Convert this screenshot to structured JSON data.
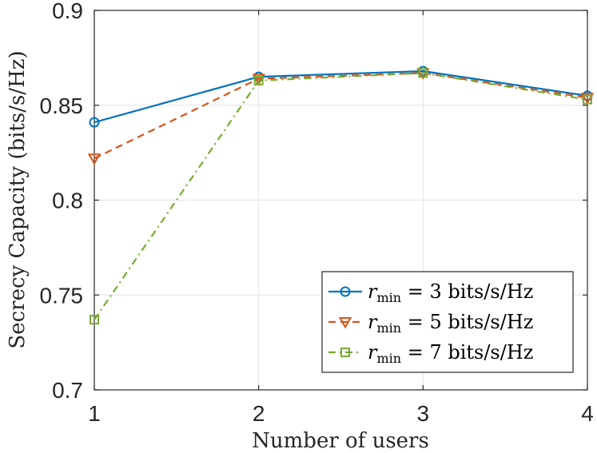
{
  "chart_data": {
    "type": "line",
    "x": [
      1,
      2,
      3,
      4
    ],
    "xlim": [
      1,
      4
    ],
    "ylim": [
      0.7,
      0.9
    ],
    "xticks": [
      "1",
      "2",
      "3",
      "4"
    ],
    "yticks": [
      "0.7",
      "0.75",
      "0.8",
      "0.85",
      "0.9"
    ],
    "xlabel": "Number of users",
    "ylabel": "Secrecy Capacity (bits/s/Hz)",
    "grid": true,
    "legend_position": "bottom-right",
    "series": [
      {
        "name": "r_min = 3 bits/s/Hz",
        "legend_var": "r",
        "legend_sub": "min",
        "legend_rest": " = 3 bits/s/Hz",
        "values": [
          0.841,
          0.865,
          0.868,
          0.855
        ],
        "color": "#0072BD",
        "dash": "solid",
        "marker": "circle"
      },
      {
        "name": "r_min = 5 bits/s/Hz",
        "legend_var": "r",
        "legend_sub": "min",
        "legend_rest": " = 5 bits/s/Hz",
        "values": [
          0.822,
          0.864,
          0.867,
          0.854
        ],
        "color": "#D95319",
        "dash": "dashed",
        "marker": "triangle-down"
      },
      {
        "name": "r_min = 7 bits/s/Hz",
        "legend_var": "r",
        "legend_sub": "min",
        "legend_rest": " = 7 bits/s/Hz",
        "values": [
          0.737,
          0.863,
          0.867,
          0.853
        ],
        "color": "#77AC30",
        "dash": "dashdot",
        "marker": "square"
      }
    ]
  }
}
